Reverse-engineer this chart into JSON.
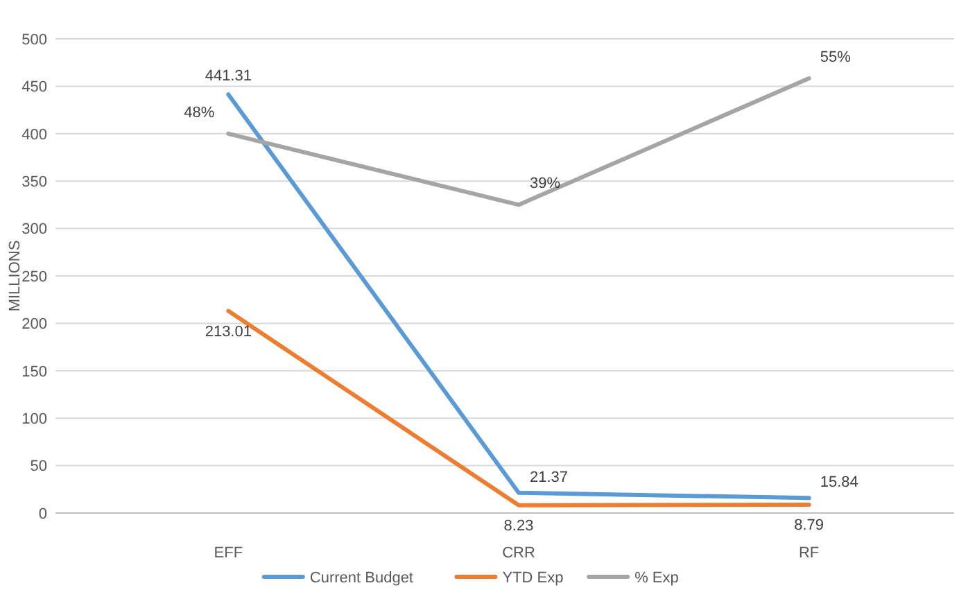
{
  "chart_data": {
    "type": "line",
    "ylabel": "MILLIONS",
    "categories": [
      "EFF",
      "CRR",
      "RF"
    ],
    "ylim": [
      0,
      500
    ],
    "yticks": [
      0,
      50,
      100,
      150,
      200,
      250,
      300,
      350,
      400,
      450,
      500
    ],
    "y2lim": [
      0,
      60
    ],
    "grid": "y",
    "legend": "bottom",
    "data_labels": true,
    "series": [
      {
        "name": "Current Budget",
        "color": "#5b9bd5",
        "values": [
          441.31,
          21.37,
          15.84
        ]
      },
      {
        "name": "YTD Exp",
        "color": "#ed7d31",
        "values": [
          213.01,
          8.23,
          8.79
        ]
      },
      {
        "name": "% Exp",
        "color": "#a5a5a5",
        "axis": "y2",
        "values": [
          48,
          39,
          55
        ],
        "value_labels": [
          "48%",
          "39%",
          "55%"
        ]
      }
    ]
  }
}
